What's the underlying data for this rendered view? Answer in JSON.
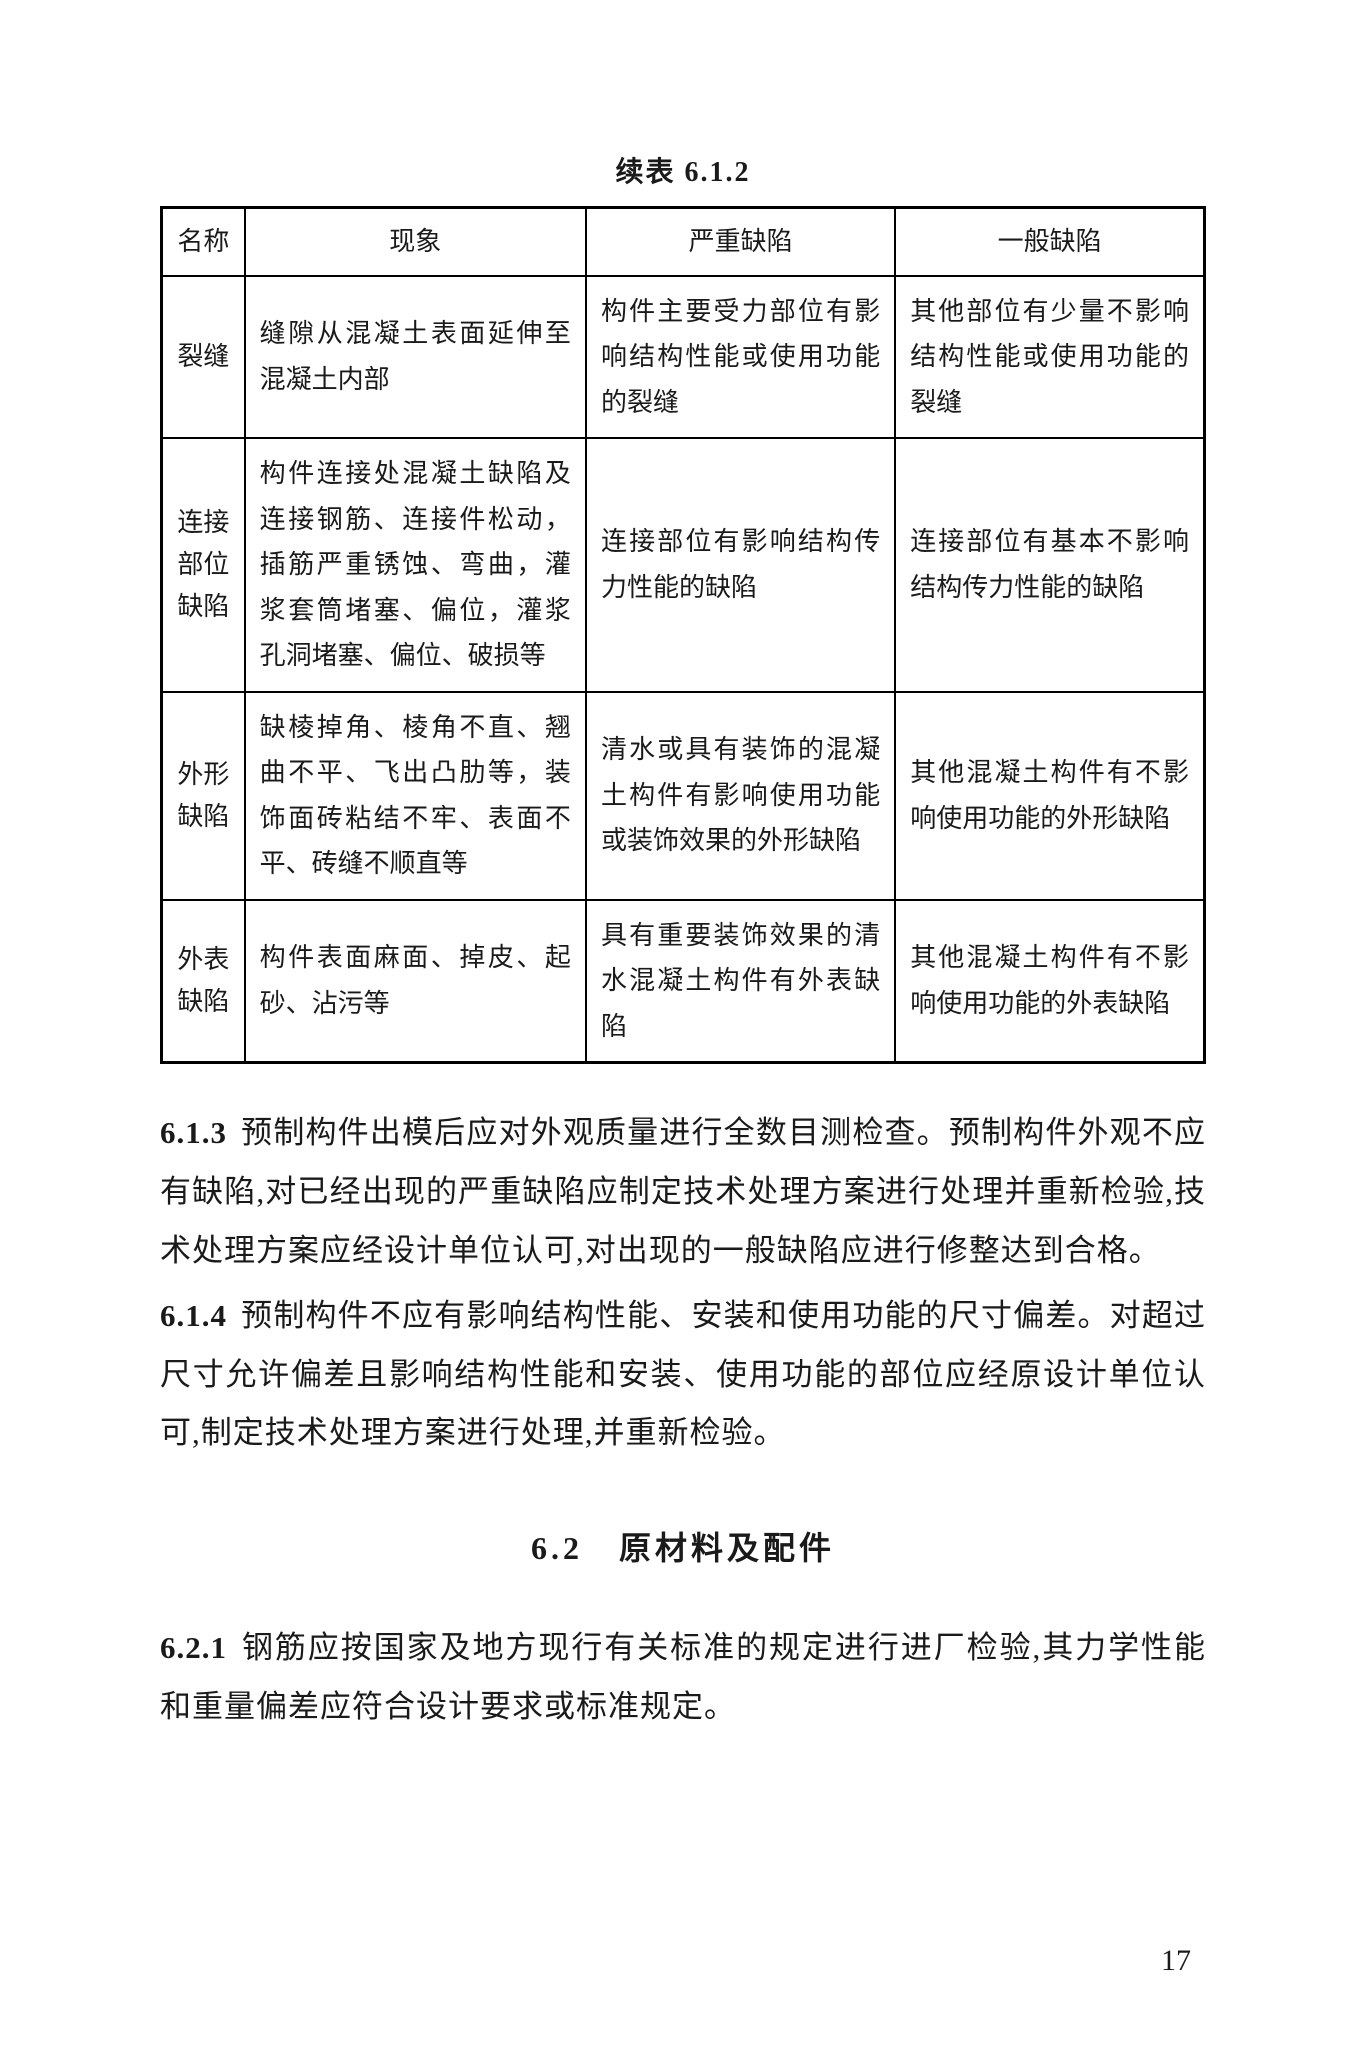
{
  "table": {
    "caption": "续表 6.1.2",
    "headers": [
      "名称",
      "现象",
      "严重缺陷",
      "一般缺陷"
    ],
    "rows": [
      {
        "name": "裂缝",
        "xx": "缝隙从混凝土表面延伸至混凝土内部",
        "yz": "构件主要受力部位有影响结构性能或使用功能的裂缝",
        "yb": "其他部位有少量不影响结构性能或使用功能的裂缝"
      },
      {
        "name": "连接部位缺陷",
        "xx": "构件连接处混凝土缺陷及连接钢筋、连接件松动，插筋严重锈蚀、弯曲，灌浆套筒堵塞、偏位，灌浆孔洞堵塞、偏位、破损等",
        "yz": "连接部位有影响结构传力性能的缺陷",
        "yb": "连接部位有基本不影响结构传力性能的缺陷"
      },
      {
        "name": "外形缺陷",
        "xx": "缺棱掉角、棱角不直、翘曲不平、飞出凸肋等，装饰面砖粘结不牢、表面不平、砖缝不顺直等",
        "yz": "清水或具有装饰的混凝土构件有影响使用功能或装饰效果的外形缺陷",
        "yb": "其他混凝土构件有不影响使用功能的外形缺陷"
      },
      {
        "name": "外表缺陷",
        "xx": "构件表面麻面、掉皮、起砂、沾污等",
        "yz": "具有重要装饰效果的清水混凝土构件有外表缺陷",
        "yb": "其他混凝土构件有不影响使用功能的外表缺陷"
      }
    ]
  },
  "clauses": [
    {
      "num": "6.1.3",
      "text": "预制构件出模后应对外观质量进行全数目测检查。预制构件外观不应有缺陷,对已经出现的严重缺陷应制定技术处理方案进行处理并重新检验,技术处理方案应经设计单位认可,对出现的一般缺陷应进行修整达到合格。"
    },
    {
      "num": "6.1.4",
      "text": "预制构件不应有影响结构性能、安装和使用功能的尺寸偏差。对超过尺寸允许偏差且影响结构性能和安装、使用功能的部位应经原设计单位认可,制定技术处理方案进行处理,并重新检验。"
    }
  ],
  "sectionHeading": "6.2　原材料及配件",
  "clause621": {
    "num": "6.2.1",
    "text": "钢筋应按国家及地方现行有关标准的规定进行进厂检验,其力学性能和重量偏差应符合设计要求或标准规定。"
  },
  "pageNumber": "17"
}
